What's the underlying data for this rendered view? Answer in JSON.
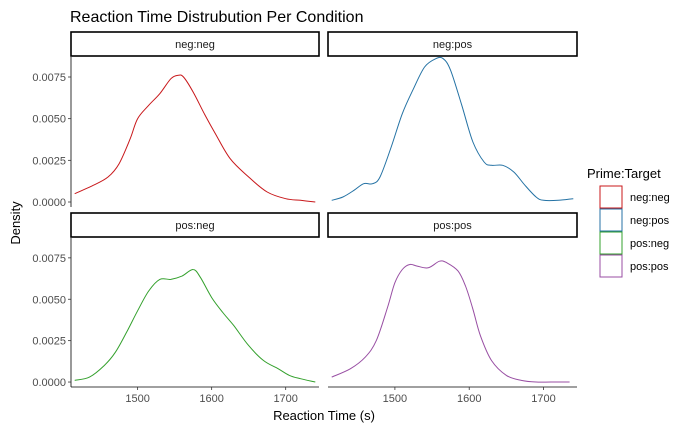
{
  "chart_data": {
    "type": "line",
    "title": "Reaction Time Distrubution Per Condition",
    "xlabel": "Reaction Time (s)",
    "ylabel": "Density",
    "xlim": [
      1410,
      1745
    ],
    "ylim": [
      -0.0003,
      0.0087
    ],
    "x_ticks": [
      1500,
      1600,
      1700
    ],
    "y_ticks": [
      0,
      0.0025,
      0.005,
      0.0075
    ],
    "x_tick_labels": [
      "1500",
      "1600",
      "1700"
    ],
    "y_tick_labels": [
      "0.0000",
      "0.0025",
      "0.0050",
      "0.0075"
    ],
    "legend": {
      "title": "Prime:Target",
      "position": "right",
      "entries": [
        "neg:neg",
        "neg:pos",
        "pos:neg",
        "pos:pos"
      ]
    },
    "panels": [
      {
        "strip": "neg:neg",
        "color": "#C8171A",
        "x": [
          1415,
          1440,
          1460,
          1475,
          1490,
          1500,
          1515,
          1530,
          1545,
          1555,
          1562,
          1575,
          1590,
          1605,
          1625,
          1650,
          1675,
          1700,
          1720,
          1740
        ],
        "y": [
          0.0005,
          0.001,
          0.0015,
          0.0023,
          0.0038,
          0.005,
          0.0058,
          0.0065,
          0.0074,
          0.0076,
          0.0075,
          0.0066,
          0.0053,
          0.0041,
          0.0026,
          0.0015,
          0.0006,
          0.0002,
          0.0001,
          0.0
        ]
      },
      {
        "strip": "neg:pos",
        "color": "#2472A4",
        "x": [
          1415,
          1430,
          1445,
          1458,
          1470,
          1480,
          1495,
          1510,
          1525,
          1540,
          1555,
          1565,
          1575,
          1590,
          1605,
          1620,
          1630,
          1645,
          1660,
          1675,
          1690,
          1700,
          1720,
          1740
        ],
        "y": [
          0.0001,
          0.0003,
          0.0007,
          0.0011,
          0.0011,
          0.0015,
          0.0033,
          0.0053,
          0.0068,
          0.0081,
          0.0086,
          0.0086,
          0.0079,
          0.0058,
          0.0036,
          0.0024,
          0.0022,
          0.0022,
          0.0018,
          0.001,
          0.0003,
          0.0001,
          0.0001,
          0.0002
        ]
      },
      {
        "strip": "pos:neg",
        "color": "#33A02C",
        "x": [
          1415,
          1435,
          1455,
          1470,
          1485,
          1500,
          1515,
          1530,
          1545,
          1560,
          1575,
          1585,
          1600,
          1615,
          1630,
          1650,
          1670,
          1690,
          1705,
          1720,
          1740
        ],
        "y": [
          0.0001,
          0.0003,
          0.001,
          0.0018,
          0.003,
          0.0043,
          0.0055,
          0.0062,
          0.0062,
          0.0064,
          0.0068,
          0.0063,
          0.0051,
          0.0042,
          0.0034,
          0.0022,
          0.0013,
          0.0008,
          0.0004,
          0.0002,
          0.0
        ]
      },
      {
        "strip": "pos:pos",
        "color": "#984EA3",
        "x": [
          1415,
          1440,
          1460,
          1475,
          1490,
          1500,
          1510,
          1520,
          1530,
          1545,
          1560,
          1570,
          1585,
          1595,
          1605,
          1615,
          1630,
          1650,
          1670,
          1690,
          1710,
          1735
        ],
        "y": [
          0.0003,
          0.0008,
          0.0015,
          0.0025,
          0.0045,
          0.006,
          0.0068,
          0.0071,
          0.007,
          0.0069,
          0.0073,
          0.0072,
          0.0067,
          0.0058,
          0.0044,
          0.0028,
          0.0013,
          0.0004,
          0.0001,
          0.0,
          0.0,
          0.0
        ]
      }
    ]
  }
}
